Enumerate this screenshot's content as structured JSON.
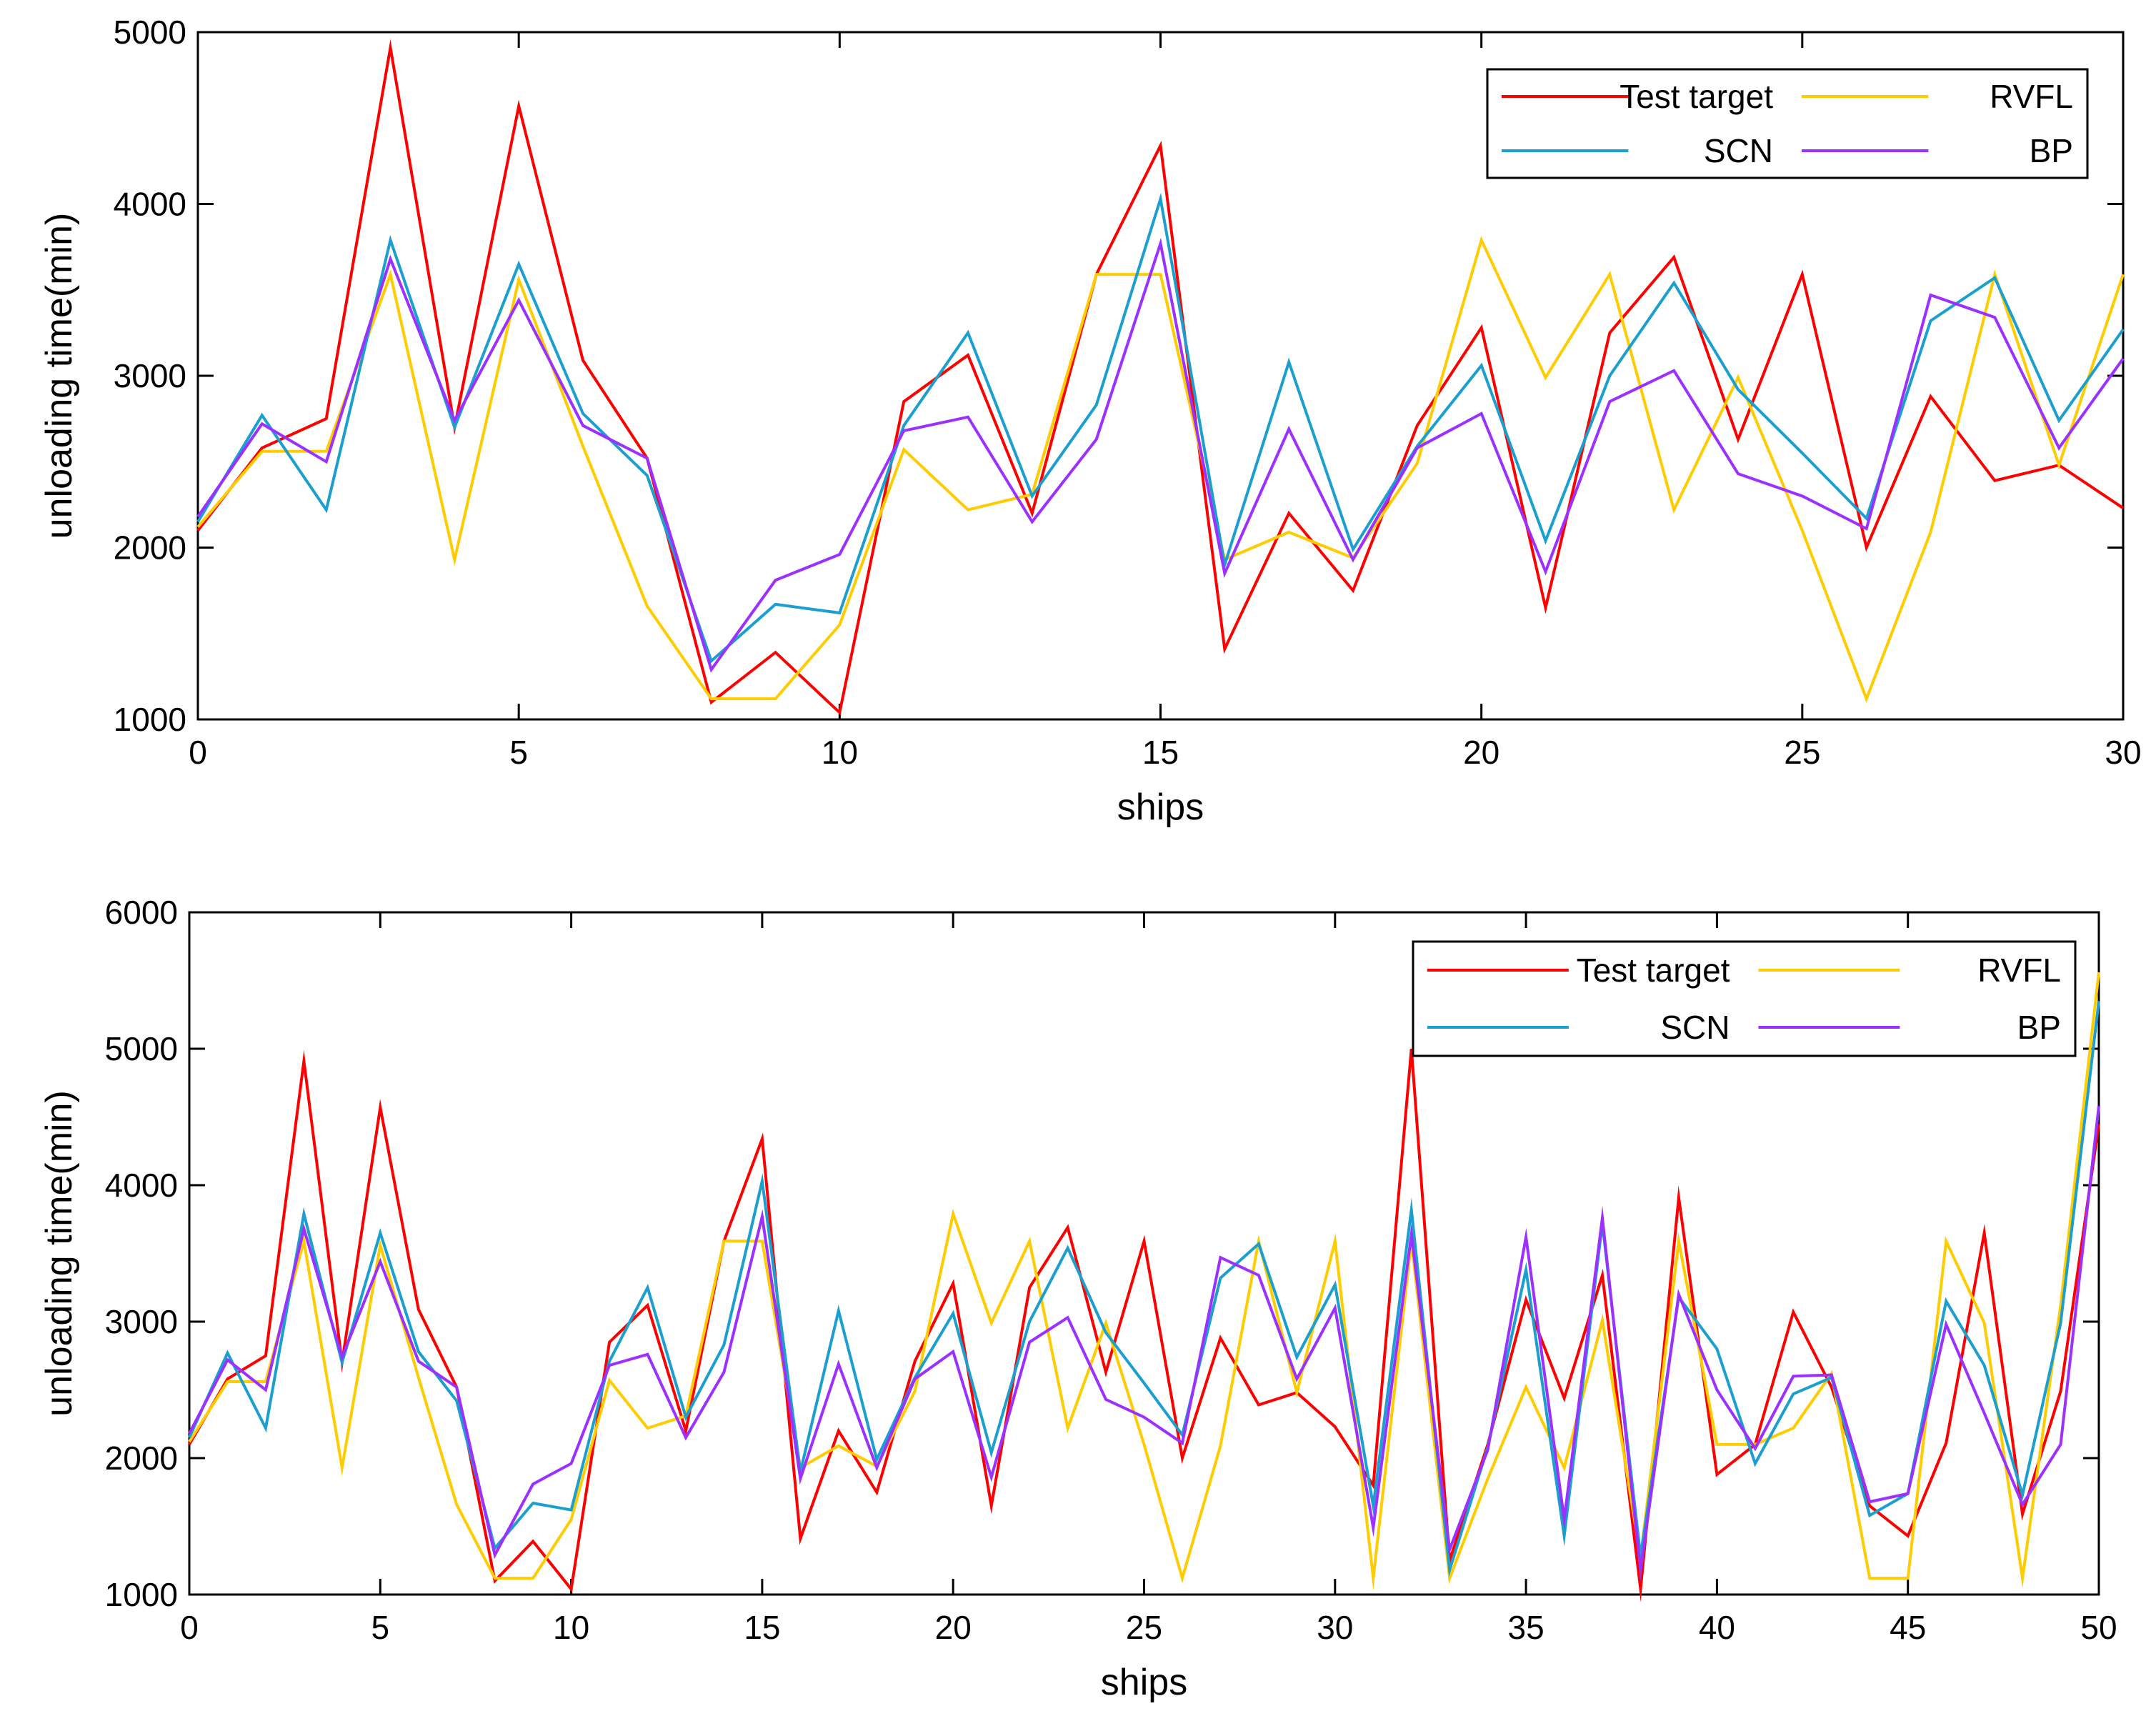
{
  "chart_data": [
    {
      "type": "line",
      "title": "",
      "xlabel": "ships",
      "ylabel": "unloading time(min)",
      "xlim": [
        0,
        30
      ],
      "ylim": [
        1000,
        5000
      ],
      "xticks": [
        0,
        5,
        10,
        15,
        20,
        25,
        30
      ],
      "yticks": [
        1000,
        2000,
        3000,
        4000,
        5000
      ],
      "grid": false,
      "legend_position": "top-right",
      "series": [
        {
          "name": "Test target",
          "color": "#ff0000",
          "x": [
            0,
            1,
            2,
            3,
            4,
            5,
            6,
            7,
            8,
            9,
            10,
            11,
            12,
            13,
            14,
            15,
            16,
            17,
            18,
            19,
            20,
            21,
            22,
            23,
            24,
            25,
            26,
            27,
            28,
            29,
            30
          ],
          "y": [
            2100,
            2580,
            2750,
            4910,
            2700,
            4570,
            3090,
            2520,
            1100,
            1390,
            1040,
            2850,
            3120,
            2200,
            3590,
            4340,
            1410,
            2200,
            1750,
            2710,
            3280,
            1650,
            3250,
            3690,
            2630,
            3590,
            2000,
            2880,
            2390,
            2480,
            2230
          ]
        },
        {
          "name": "RVFL",
          "color": "#ffcc00",
          "x": [
            0,
            1,
            2,
            3,
            4,
            5,
            6,
            7,
            8,
            9,
            10,
            11,
            12,
            13,
            14,
            15,
            16,
            17,
            18,
            19,
            20,
            21,
            22,
            23,
            24,
            25,
            26,
            27,
            28,
            29,
            30
          ],
          "y": [
            2120,
            2560,
            2560,
            3590,
            1930,
            3560,
            2590,
            1660,
            1120,
            1120,
            1550,
            2570,
            2220,
            2310,
            3590,
            3590,
            1930,
            2090,
            1940,
            2490,
            3790,
            2990,
            3590,
            2220,
            2990,
            2100,
            1120,
            2090,
            3590,
            2480,
            3590
          ]
        },
        {
          "name": "SCN",
          "color": "#1b9fcf",
          "x": [
            0,
            1,
            2,
            3,
            4,
            5,
            6,
            7,
            8,
            9,
            10,
            11,
            12,
            13,
            14,
            15,
            16,
            17,
            18,
            19,
            20,
            21,
            22,
            23,
            24,
            25,
            26,
            27,
            28,
            29,
            30
          ],
          "y": [
            2150,
            2770,
            2220,
            3790,
            2700,
            3650,
            2780,
            2420,
            1340,
            1670,
            1620,
            2710,
            3250,
            2300,
            2830,
            4030,
            1900,
            3080,
            1990,
            2590,
            3060,
            2040,
            3000,
            3540,
            2920,
            2550,
            2170,
            3320,
            3570,
            2740,
            3270
          ]
        },
        {
          "name": "BP",
          "color": "#9b30ff",
          "x": [
            0,
            1,
            2,
            3,
            4,
            5,
            6,
            7,
            8,
            9,
            10,
            11,
            12,
            13,
            14,
            15,
            16,
            17,
            18,
            19,
            20,
            21,
            22,
            23,
            24,
            25,
            26,
            27,
            28,
            29,
            30
          ],
          "y": [
            2180,
            2720,
            2500,
            3680,
            2740,
            3440,
            2710,
            2520,
            1290,
            1810,
            1960,
            2680,
            2760,
            2150,
            2630,
            3770,
            1850,
            2690,
            1930,
            2580,
            2780,
            1860,
            2850,
            3030,
            2430,
            2300,
            2110,
            3470,
            3340,
            2580,
            3100
          ]
        }
      ]
    },
    {
      "type": "line",
      "title": "",
      "xlabel": "ships",
      "ylabel": "unloading time(min)",
      "xlim": [
        0,
        50
      ],
      "ylim": [
        1000,
        6000
      ],
      "xticks": [
        0,
        5,
        10,
        15,
        20,
        25,
        30,
        35,
        40,
        45,
        50
      ],
      "yticks": [
        1000,
        2000,
        3000,
        4000,
        5000,
        6000
      ],
      "grid": false,
      "legend_position": "top-right",
      "series": [
        {
          "name": "Test target",
          "color": "#ff0000",
          "x": [
            0,
            1,
            2,
            3,
            4,
            5,
            6,
            7,
            8,
            9,
            10,
            11,
            12,
            13,
            14,
            15,
            16,
            17,
            18,
            19,
            20,
            21,
            22,
            23,
            24,
            25,
            26,
            27,
            28,
            29,
            30,
            31,
            32,
            33,
            34,
            35,
            36,
            37,
            38,
            39,
            40,
            41,
            42,
            43,
            44,
            45,
            46,
            47,
            48,
            49,
            50
          ],
          "y": [
            2100,
            2580,
            2750,
            4910,
            2700,
            4570,
            3090,
            2520,
            1100,
            1390,
            1040,
            2850,
            3120,
            2200,
            3590,
            4340,
            1410,
            2200,
            1750,
            2710,
            3280,
            1650,
            3250,
            3690,
            2630,
            3590,
            2000,
            2880,
            2390,
            2480,
            2230,
            1800,
            5000,
            1250,
            2100,
            3160,
            2440,
            3340,
            1040,
            3910,
            1880,
            2100,
            3070,
            2520,
            1650,
            1430,
            2110,
            3650,
            1590,
            2490,
            4450
          ]
        },
        {
          "name": "RVFL",
          "color": "#ffcc00",
          "x": [
            0,
            1,
            2,
            3,
            4,
            5,
            6,
            7,
            8,
            9,
            10,
            11,
            12,
            13,
            14,
            15,
            16,
            17,
            18,
            19,
            20,
            21,
            22,
            23,
            24,
            25,
            26,
            27,
            28,
            29,
            30,
            31,
            32,
            33,
            34,
            35,
            36,
            37,
            38,
            39,
            40,
            41,
            42,
            43,
            44,
            45,
            46,
            47,
            48,
            49,
            50
          ],
          "y": [
            2120,
            2560,
            2560,
            3590,
            1930,
            3560,
            2590,
            1660,
            1120,
            1120,
            1550,
            2570,
            2220,
            2310,
            3590,
            3590,
            1930,
            2090,
            1940,
            2490,
            3790,
            2990,
            3590,
            2220,
            2990,
            2100,
            1120,
            2090,
            3590,
            2480,
            3590,
            1120,
            3590,
            1120,
            1850,
            2520,
            1930,
            3010,
            1270,
            3590,
            2100,
            2100,
            2220,
            2620,
            1120,
            1120,
            3590,
            2990,
            1120,
            3120,
            5560
          ]
        },
        {
          "name": "SCN",
          "color": "#1b9fcf",
          "x": [
            0,
            1,
            2,
            3,
            4,
            5,
            6,
            7,
            8,
            9,
            10,
            11,
            12,
            13,
            14,
            15,
            16,
            17,
            18,
            19,
            20,
            21,
            22,
            23,
            24,
            25,
            26,
            27,
            28,
            29,
            30,
            31,
            32,
            33,
            34,
            35,
            36,
            37,
            38,
            39,
            40,
            41,
            42,
            43,
            44,
            45,
            46,
            47,
            48,
            49,
            50
          ],
          "y": [
            2150,
            2770,
            2220,
            3790,
            2700,
            3650,
            2780,
            2420,
            1340,
            1670,
            1620,
            2710,
            3250,
            2300,
            2830,
            4030,
            1900,
            3080,
            1990,
            2590,
            3060,
            2040,
            3000,
            3540,
            2920,
            2550,
            2170,
            3320,
            3570,
            2740,
            3270,
            1650,
            3820,
            1180,
            2080,
            3380,
            1430,
            3720,
            1280,
            3180,
            2800,
            1960,
            2470,
            2590,
            1580,
            1740,
            3150,
            2680,
            1730,
            2990,
            5350
          ]
        },
        {
          "name": "BP",
          "color": "#9b30ff",
          "x": [
            0,
            1,
            2,
            3,
            4,
            5,
            6,
            7,
            8,
            9,
            10,
            11,
            12,
            13,
            14,
            15,
            16,
            17,
            18,
            19,
            20,
            21,
            22,
            23,
            24,
            25,
            26,
            27,
            28,
            29,
            30,
            31,
            32,
            33,
            34,
            35,
            36,
            37,
            38,
            39,
            40,
            41,
            42,
            43,
            44,
            45,
            46,
            47,
            48,
            49,
            50
          ],
          "y": [
            2180,
            2720,
            2500,
            3680,
            2740,
            3440,
            2710,
            2520,
            1290,
            1810,
            1960,
            2680,
            2760,
            2150,
            2630,
            3770,
            1850,
            2690,
            1930,
            2580,
            2780,
            1860,
            2850,
            3030,
            2430,
            2300,
            2110,
            3470,
            3340,
            2580,
            3100,
            1490,
            3640,
            1330,
            2060,
            3620,
            1550,
            3760,
            1180,
            3200,
            2500,
            2070,
            2600,
            2610,
            1680,
            1740,
            2980,
            2330,
            1660,
            2100,
            4580
          ]
        }
      ]
    }
  ]
}
